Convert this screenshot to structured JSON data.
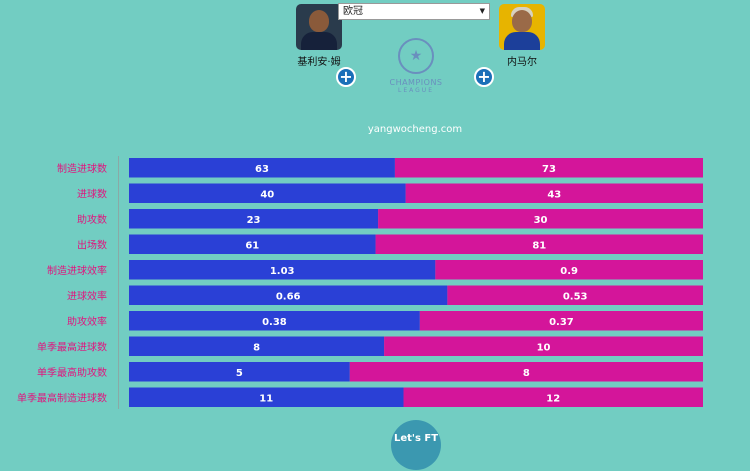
{
  "header": {
    "player_left": {
      "name": "基利安·姆"
    },
    "player_right": {
      "name": "内马尔"
    },
    "competition_select": {
      "value": "欧冠"
    },
    "logo": {
      "title": "CHAMPIONS",
      "subtitle": "LEAGUE"
    },
    "site": "yangwocheng.com",
    "bottom_logo": {
      "title": "Let's FT",
      "subtitle": " "
    }
  },
  "colors": {
    "left_bar": "#2a40d6",
    "right_bar": "#d4159a",
    "label": "#e0157e",
    "background": "#72cdc2"
  },
  "icons": {
    "add": "plus-circle-icon",
    "dropdown": "chevron-down-icon"
  },
  "chart_data": {
    "type": "bar",
    "orientation": "horizontal-stacked-share",
    "categories": [
      "制造进球数",
      "进球数",
      "助攻数",
      "出场数",
      "制造进球效率",
      "进球效率",
      "助攻效率",
      "单季最高进球数",
      "单季最高助攻数",
      "单季最高制造进球数"
    ],
    "series": [
      {
        "name": "基利安·姆",
        "values": [
          63,
          40,
          23,
          61,
          1.03,
          0.66,
          0.38,
          8,
          5,
          11
        ],
        "labels": [
          "63",
          "40",
          "23",
          "61",
          "1.03",
          "0.66",
          "0.38",
          "8",
          "5",
          "11"
        ]
      },
      {
        "name": "内马尔",
        "values": [
          73,
          43,
          30,
          81,
          0.9,
          0.53,
          0.37,
          10,
          8,
          12
        ],
        "labels": [
          "73",
          "43",
          "30",
          "81",
          "0.9",
          "0.53",
          "0.37",
          "10",
          "8",
          "12"
        ]
      }
    ]
  }
}
